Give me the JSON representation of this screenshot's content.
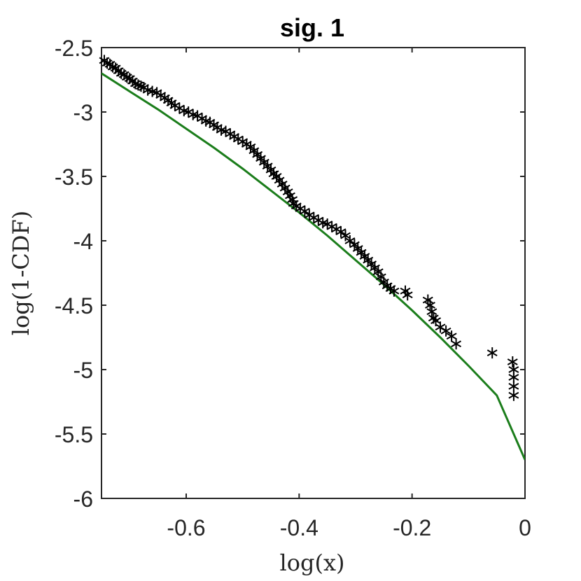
{
  "chart_data": {
    "type": "scatter",
    "title": "sig. 1",
    "xlabel": "log(x)",
    "ylabel": "log(1-CDF)",
    "xlim": [
      -0.75,
      0
    ],
    "ylim": [
      -6,
      -2.5
    ],
    "xticks": [
      -0.6,
      -0.4,
      -0.2,
      0
    ],
    "xtick_labels": [
      "-0.6",
      "-0.4",
      "-0.2",
      "0"
    ],
    "yticks": [
      -6,
      -5.5,
      -5,
      -4.5,
      -4,
      -3.5,
      -3,
      -2.5
    ],
    "ytick_labels": [
      "-6",
      "-5.5",
      "-5",
      "-4.5",
      "-4",
      "-3.5",
      "-3",
      "-2.5"
    ],
    "grid": false,
    "colors": {
      "markers": "#000000",
      "fit_line": "#1b7d1b",
      "axes": "#262626"
    },
    "series": [
      {
        "kind": "markers",
        "marker": "asterisk",
        "x": [
          -0.745,
          -0.74,
          -0.735,
          -0.73,
          -0.725,
          -0.72,
          -0.715,
          -0.71,
          -0.705,
          -0.7,
          -0.695,
          -0.69,
          -0.685,
          -0.68,
          -0.675,
          -0.668,
          -0.66,
          -0.652,
          -0.645,
          -0.638,
          -0.632,
          -0.626,
          -0.62,
          -0.612,
          -0.604,
          -0.596,
          -0.588,
          -0.58,
          -0.572,
          -0.565,
          -0.558,
          -0.551,
          -0.545,
          -0.538,
          -0.53,
          -0.522,
          -0.515,
          -0.508,
          -0.5,
          -0.493,
          -0.486,
          -0.48,
          -0.474,
          -0.468,
          -0.462,
          -0.456,
          -0.45,
          -0.445,
          -0.44,
          -0.435,
          -0.43,
          -0.425,
          -0.42,
          -0.416,
          -0.412,
          -0.41,
          -0.405,
          -0.398,
          -0.39,
          -0.382,
          -0.374,
          -0.366,
          -0.358,
          -0.35,
          -0.342,
          -0.334,
          -0.326,
          -0.318,
          -0.31,
          -0.302,
          -0.296,
          -0.29,
          -0.284,
          -0.278,
          -0.272,
          -0.266,
          -0.26,
          -0.255,
          -0.25,
          -0.244,
          -0.238,
          -0.232,
          -0.212,
          -0.208,
          -0.172,
          -0.168,
          -0.165,
          -0.162,
          -0.158,
          -0.15,
          -0.14,
          -0.13,
          -0.122,
          -0.058,
          -0.022,
          -0.02,
          -0.02,
          -0.02,
          -0.02
        ],
        "y": [
          -2.6,
          -2.62,
          -2.63,
          -2.65,
          -2.66,
          -2.68,
          -2.7,
          -2.71,
          -2.73,
          -2.74,
          -2.76,
          -2.78,
          -2.79,
          -2.8,
          -2.81,
          -2.83,
          -2.84,
          -2.85,
          -2.87,
          -2.89,
          -2.91,
          -2.93,
          -2.95,
          -2.97,
          -2.99,
          -3.0,
          -3.02,
          -3.03,
          -3.05,
          -3.07,
          -3.08,
          -3.1,
          -3.12,
          -3.14,
          -3.15,
          -3.17,
          -3.19,
          -3.21,
          -3.23,
          -3.25,
          -3.27,
          -3.3,
          -3.33,
          -3.36,
          -3.39,
          -3.42,
          -3.45,
          -3.48,
          -3.5,
          -3.53,
          -3.56,
          -3.59,
          -3.62,
          -3.65,
          -3.68,
          -3.71,
          -3.73,
          -3.75,
          -3.77,
          -3.8,
          -3.82,
          -3.84,
          -3.86,
          -3.87,
          -3.89,
          -3.91,
          -3.93,
          -3.96,
          -4.0,
          -4.03,
          -4.06,
          -4.09,
          -4.12,
          -4.15,
          -4.18,
          -4.21,
          -4.24,
          -4.28,
          -4.32,
          -4.35,
          -4.37,
          -4.39,
          -4.39,
          -4.42,
          -4.46,
          -4.5,
          -4.55,
          -4.6,
          -4.62,
          -4.67,
          -4.7,
          -4.74,
          -4.8,
          -4.87,
          -4.94,
          -5.0,
          -5.06,
          -5.13,
          -5.2
        ]
      },
      {
        "kind": "line",
        "x": [
          -0.75,
          -0.7,
          -0.65,
          -0.6,
          -0.55,
          -0.5,
          -0.45,
          -0.4,
          -0.35,
          -0.3,
          -0.25,
          -0.2,
          -0.15,
          -0.1,
          -0.05,
          0
        ],
        "y": [
          -2.7,
          -2.84,
          -2.98,
          -3.13,
          -3.28,
          -3.44,
          -3.61,
          -3.78,
          -3.96,
          -4.15,
          -4.34,
          -4.54,
          -4.75,
          -4.97,
          -5.2,
          -5.7
        ]
      }
    ]
  }
}
